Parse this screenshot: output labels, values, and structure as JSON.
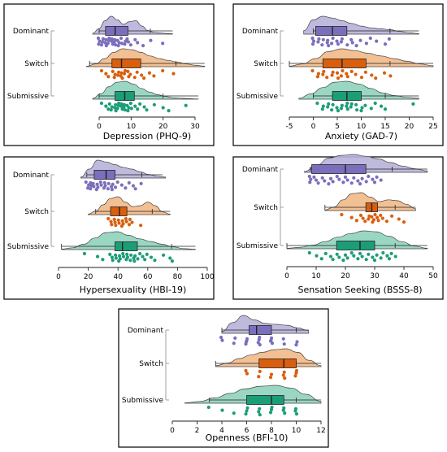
{
  "colors": {
    "Dominant": {
      "fill": "#b7b2d9",
      "box": "#7b6fbd",
      "dot": "#7b6fbd"
    },
    "Switch": {
      "fill": "#f1b987",
      "box": "#d95f0e",
      "dot": "#d95f0e"
    },
    "Submissive": {
      "fill": "#8fd3bd",
      "box": "#1b9e77",
      "dot": "#1b9e77"
    }
  },
  "chart_data": [
    {
      "type": "raincloud",
      "xlabel": "Depression (PHQ-9)",
      "xlim": [
        -3,
        32
      ],
      "xticks": [
        0,
        10,
        20,
        30
      ],
      "groups": [
        {
          "name": "Dominant",
          "box": [
            0,
            2,
            5,
            9,
            16,
            23
          ],
          "density_range": [
            -2,
            23
          ],
          "density": [
            0.05,
            0.3,
            0.75,
            1.0,
            0.8,
            0.55,
            0.7,
            0.75,
            0.45,
            0.2,
            0.1,
            0.07,
            0.04,
            0.02
          ],
          "points": [
            0,
            0,
            0,
            1,
            1,
            1,
            2,
            2,
            2,
            3,
            3,
            3,
            4,
            4,
            4,
            5,
            5,
            5,
            6,
            6,
            6,
            7,
            7,
            8,
            8,
            9,
            9,
            10,
            11,
            12,
            14,
            16,
            20
          ]
        },
        {
          "name": "Switch",
          "box": [
            -3,
            4,
            7,
            13,
            24,
            33
          ],
          "density_range": [
            -4,
            33
          ],
          "density": [
            0.02,
            0.15,
            0.45,
            0.8,
            1.0,
            0.95,
            0.8,
            0.6,
            0.45,
            0.35,
            0.25,
            0.15,
            0.08,
            0.03
          ],
          "points": [
            1,
            2,
            3,
            4,
            5,
            5,
            6,
            6,
            7,
            7,
            7,
            8,
            8,
            9,
            9,
            10,
            11,
            12,
            13,
            14,
            16,
            17,
            20,
            23
          ]
        },
        {
          "name": "Submissive",
          "box": [
            0,
            5,
            8,
            11,
            20,
            31
          ],
          "density_range": [
            -2,
            31
          ],
          "density": [
            0.05,
            0.3,
            0.7,
            0.95,
            1.0,
            0.85,
            0.6,
            0.4,
            0.25,
            0.15,
            0.08,
            0.05,
            0.03,
            0.01
          ],
          "points": [
            1,
            2,
            3,
            3,
            4,
            4,
            5,
            5,
            5,
            6,
            6,
            6,
            7,
            7,
            7,
            8,
            8,
            8,
            9,
            9,
            9,
            10,
            10,
            11,
            12,
            13,
            14,
            15,
            17,
            20,
            22,
            27
          ]
        }
      ]
    },
    {
      "type": "raincloud",
      "xlabel": "Anxiety (GAD-7)",
      "xlim": [
        -5,
        25
      ],
      "xticks": [
        -5,
        0,
        5,
        10,
        15,
        20,
        25
      ],
      "groups": [
        {
          "name": "Dominant",
          "box": [
            0,
            0.5,
            4,
            7,
            16,
            22
          ],
          "density_range": [
            -2,
            22
          ],
          "density": [
            0.2,
            0.8,
            1.0,
            0.9,
            0.75,
            0.6,
            0.45,
            0.35,
            0.3,
            0.25,
            0.15,
            0.08,
            0.03
          ],
          "points": [
            0,
            0,
            0,
            1,
            1,
            2,
            2,
            3,
            3,
            3,
            4,
            4,
            5,
            5,
            6,
            6,
            7,
            8,
            8,
            9,
            10,
            11,
            12,
            13,
            15,
            16
          ]
        },
        {
          "name": "Switch",
          "box": [
            -5,
            2,
            6,
            11,
            16,
            25
          ],
          "density_range": [
            -5,
            25
          ],
          "density": [
            0.03,
            0.15,
            0.45,
            0.85,
            1.0,
            0.9,
            0.75,
            0.6,
            0.45,
            0.3,
            0.15,
            0.05
          ],
          "points": [
            0,
            1,
            1,
            2,
            2,
            3,
            4,
            4,
            5,
            5,
            6,
            6,
            7,
            7,
            8,
            9,
            10,
            11,
            12,
            13,
            15,
            16
          ]
        },
        {
          "name": "Submissive",
          "box": [
            0,
            4,
            7,
            10,
            15,
            22
          ],
          "density_range": [
            -3,
            22
          ],
          "density": [
            0.05,
            0.3,
            0.65,
            0.95,
            1.0,
            0.85,
            0.6,
            0.35,
            0.2,
            0.1,
            0.05
          ],
          "points": [
            1,
            2,
            2,
            3,
            3,
            4,
            4,
            5,
            5,
            6,
            6,
            7,
            7,
            7,
            8,
            8,
            9,
            9,
            10,
            10,
            11,
            12,
            13,
            14,
            15,
            21
          ]
        }
      ]
    },
    {
      "type": "raincloud",
      "xlabel": "Hypersexuality (HBI-19)",
      "xlim": [
        0,
        100
      ],
      "xticks": [
        0,
        20,
        40,
        60,
        80,
        100
      ],
      "groups": [
        {
          "name": "Dominant",
          "box": [
            19,
            24,
            32,
            38,
            56,
            70
          ],
          "density_range": [
            15,
            72
          ],
          "density": [
            0.05,
            0.5,
            1.0,
            0.9,
            0.75,
            0.6,
            0.5,
            0.35,
            0.2,
            0.1,
            0.05
          ],
          "points": [
            19,
            20,
            20,
            21,
            22,
            22,
            23,
            24,
            25,
            26,
            27,
            28,
            29,
            30,
            31,
            32,
            33,
            34,
            35,
            36,
            37,
            38,
            40,
            42,
            45,
            48,
            50,
            52,
            55
          ]
        },
        {
          "name": "Switch",
          "box": [
            25,
            35,
            41,
            46,
            63,
            75
          ],
          "density_range": [
            20,
            75
          ],
          "density": [
            0.03,
            0.2,
            0.55,
            0.9,
            1.0,
            0.7,
            0.45,
            0.5,
            0.7,
            0.5,
            0.15,
            0.03
          ],
          "points": [
            34,
            35,
            36,
            37,
            38,
            39,
            40,
            41,
            42,
            43,
            44,
            45,
            46,
            47,
            48,
            50,
            55
          ]
        },
        {
          "name": "Submissive",
          "box": [
            2,
            38,
            43,
            53,
            76,
            92
          ],
          "density_range": [
            2,
            92
          ],
          "density": [
            0.03,
            0.1,
            0.3,
            0.65,
            0.95,
            1.0,
            0.8,
            0.6,
            0.45,
            0.3,
            0.15,
            0.05,
            0.02
          ],
          "points": [
            18,
            26,
            30,
            34,
            36,
            37,
            38,
            39,
            40,
            41,
            42,
            43,
            44,
            45,
            46,
            47,
            48,
            49,
            50,
            51,
            52,
            53,
            55,
            56,
            58,
            60,
            62,
            65,
            70,
            75,
            77
          ]
        }
      ]
    },
    {
      "type": "raincloud",
      "xlabel": "Sensation Seeking (BSSS-8)",
      "xlim": [
        0,
        50
      ],
      "xticks": [
        0,
        10,
        20,
        30,
        40,
        50
      ],
      "groups": [
        {
          "name": "Dominant",
          "box": [
            8,
            8.5,
            20,
            27,
            36,
            48
          ],
          "density_range": [
            6,
            48
          ],
          "density": [
            0.05,
            0.4,
            0.8,
            0.95,
            1.0,
            0.9,
            0.75,
            0.55,
            0.35,
            0.2,
            0.08
          ],
          "points": [
            8,
            8,
            8,
            9,
            10,
            11,
            12,
            13,
            14,
            15,
            16,
            17,
            18,
            19,
            20,
            21,
            22,
            23,
            24,
            25,
            26,
            27,
            28,
            29,
            30,
            31,
            32
          ]
        },
        {
          "name": "Switch",
          "box": [
            13,
            27,
            29,
            31,
            37,
            44
          ],
          "density_range": [
            13,
            44
          ],
          "density": [
            0.03,
            0.2,
            0.6,
            0.95,
            1.0,
            0.75,
            0.5,
            0.6,
            0.55,
            0.35,
            0.1
          ],
          "points": [
            19,
            22,
            24,
            25,
            26,
            27,
            28,
            28,
            29,
            29,
            30,
            30,
            31,
            31,
            32,
            33,
            34,
            36,
            38,
            40
          ]
        },
        {
          "name": "Submissive",
          "box": [
            0,
            17,
            25,
            30,
            37,
            48
          ],
          "density_range": [
            0,
            48
          ],
          "density": [
            0.03,
            0.08,
            0.2,
            0.4,
            0.65,
            0.85,
            1.0,
            0.95,
            0.7,
            0.4,
            0.15,
            0.03
          ],
          "points": [
            8,
            10,
            12,
            13,
            15,
            16,
            17,
            18,
            19,
            20,
            21,
            22,
            23,
            24,
            25,
            26,
            27,
            28,
            29,
            30,
            31,
            32,
            33,
            34,
            35,
            36,
            37
          ]
        }
      ]
    },
    {
      "type": "raincloud",
      "xlabel": "Openness (BFI-10)",
      "xlim": [
        0,
        12
      ],
      "xticks": [
        0,
        2,
        4,
        6,
        8,
        10,
        12
      ],
      "groups": [
        {
          "name": "Dominant",
          "box": [
            4,
            6.2,
            6.8,
            8,
            10,
            11
          ],
          "density_range": [
            4,
            11
          ],
          "density": [
            0.1,
            0.6,
            1.0,
            0.75,
            0.55,
            0.5,
            0.45,
            0.3,
            0.15
          ],
          "points": [
            4,
            4,
            5,
            5,
            6,
            6,
            6,
            6,
            7,
            7,
            7,
            7,
            8,
            8,
            8,
            8,
            9,
            9,
            10,
            10
          ]
        },
        {
          "name": "Switch",
          "box": [
            3.5,
            7,
            9,
            10,
            10,
            12
          ],
          "density_range": [
            3.5,
            12
          ],
          "density": [
            0.05,
            0.2,
            0.45,
            0.65,
            0.8,
            0.95,
            1.0,
            0.8,
            0.35,
            0.05
          ],
          "points": [
            6,
            6,
            7,
            7,
            8,
            8,
            9,
            9,
            9,
            10,
            10,
            10
          ]
        },
        {
          "name": "Submissive",
          "box": [
            3,
            6,
            8,
            9,
            10,
            12
          ],
          "density_range": [
            1,
            12
          ],
          "density": [
            0.02,
            0.1,
            0.3,
            0.55,
            0.8,
            0.95,
            1.0,
            0.85,
            0.5,
            0.1
          ],
          "points": [
            3,
            4,
            5,
            6,
            6,
            6,
            7,
            7,
            7,
            8,
            8,
            8,
            9,
            9,
            9,
            10,
            10,
            10
          ]
        }
      ]
    }
  ]
}
